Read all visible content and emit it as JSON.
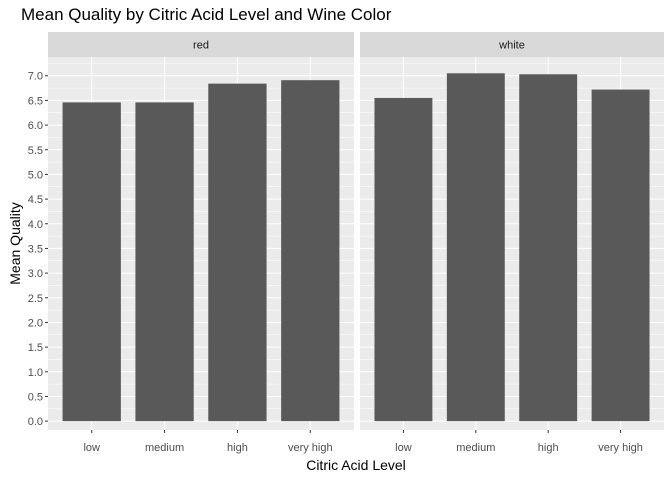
{
  "chart_data": {
    "type": "bar",
    "title": "Mean Quality by Citric Acid Level and Wine Color",
    "xlabel": "Citric Acid Level",
    "ylabel": "Mean Quality",
    "categories": [
      "low",
      "medium",
      "high",
      "very high"
    ],
    "facets": [
      {
        "name": "red",
        "values": [
          6.46,
          6.46,
          6.84,
          6.91
        ]
      },
      {
        "name": "white",
        "values": [
          6.55,
          7.05,
          7.03,
          6.72
        ]
      }
    ],
    "ylim": [
      -0.18,
      7.38
    ],
    "yticks": [
      "0.0",
      "0.5",
      "1.0",
      "1.5",
      "2.0",
      "2.5",
      "3.0",
      "3.5",
      "4.0",
      "4.5",
      "5.0",
      "5.5",
      "6.0",
      "6.5",
      "7.0"
    ],
    "grid": true,
    "bar_color": "#595959",
    "panel_background": "#ebebeb",
    "strip_background": "#d9d9d9",
    "grid_color": "#ffffff"
  }
}
